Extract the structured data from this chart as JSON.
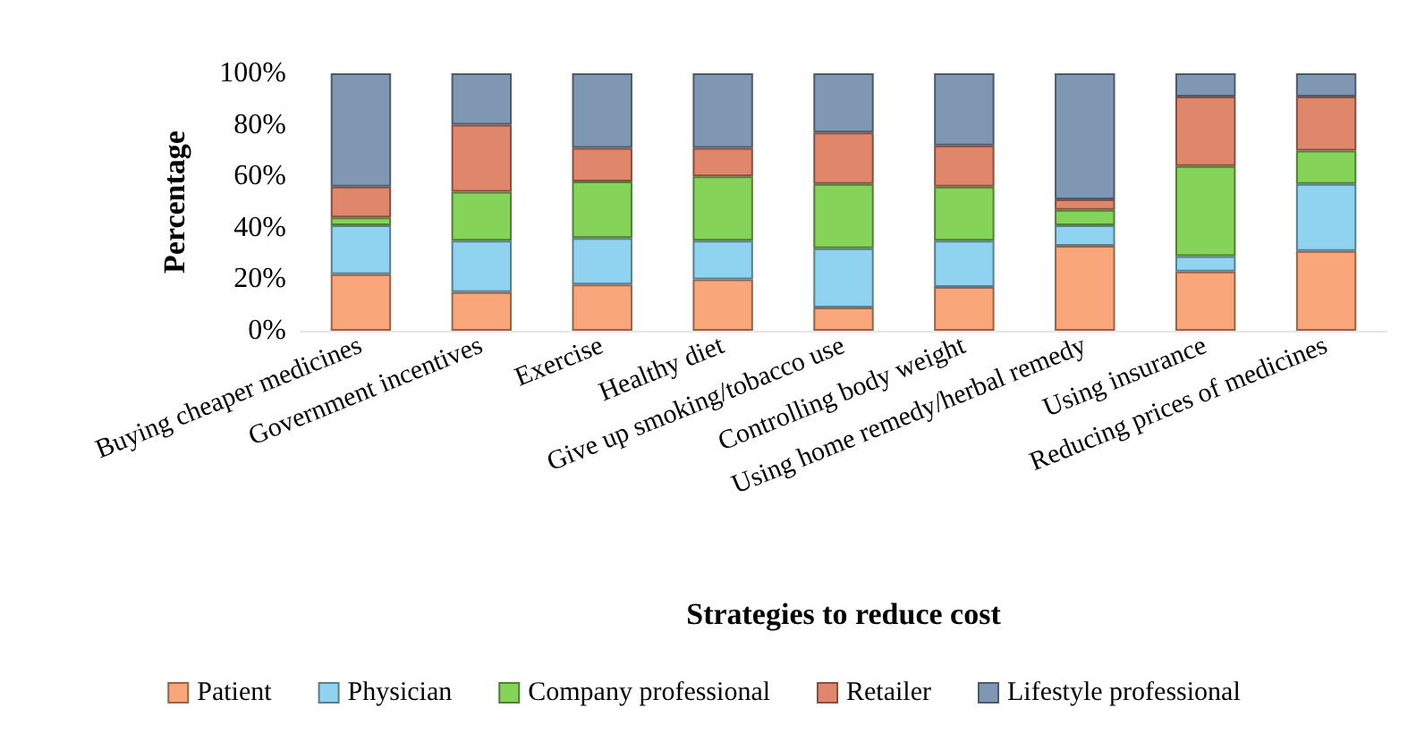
{
  "chart_data": {
    "type": "bar",
    "stacked": true,
    "xlabel": "Strategies to reduce cost",
    "ylabel": "Percentage",
    "categories": [
      "Buying cheaper medicines",
      "Government incentives",
      "Exercise",
      "Healthy diet",
      "Give up smoking/tobacco use",
      "Controlling body weight",
      "Using home remedy/herbal remedy",
      "Using insurance",
      "Reducing prices of medicines"
    ],
    "series": [
      {
        "name": "Patient",
        "color": "#f9a77a",
        "values": [
          22,
          15,
          18,
          20,
          9,
          17,
          33,
          23,
          31
        ]
      },
      {
        "name": "Physician",
        "color": "#8fd3f0",
        "values": [
          19,
          20,
          18,
          15,
          23,
          18,
          8,
          6,
          26
        ]
      },
      {
        "name": "Company professional",
        "color": "#86d35a",
        "values": [
          3,
          19,
          22,
          25,
          25,
          21,
          6,
          35,
          13
        ]
      },
      {
        "name": "Retailer",
        "color": "#e0866a",
        "values": [
          12,
          26,
          13,
          11,
          20,
          16,
          4,
          27,
          21
        ]
      },
      {
        "name": "Lifestyle professional",
        "color": "#7f97b2",
        "values": [
          44,
          20,
          29,
          29,
          23,
          28,
          49,
          9,
          9
        ]
      }
    ],
    "ylim": [
      0,
      100
    ],
    "yticks": [
      {
        "value": 0,
        "label": "0%"
      },
      {
        "value": 20,
        "label": "20%"
      },
      {
        "value": 40,
        "label": "40%"
      },
      {
        "value": 60,
        "label": "60%"
      },
      {
        "value": 80,
        "label": "80%"
      },
      {
        "value": 100,
        "label": "100%"
      }
    ],
    "grid": false,
    "legend": "bottom"
  }
}
